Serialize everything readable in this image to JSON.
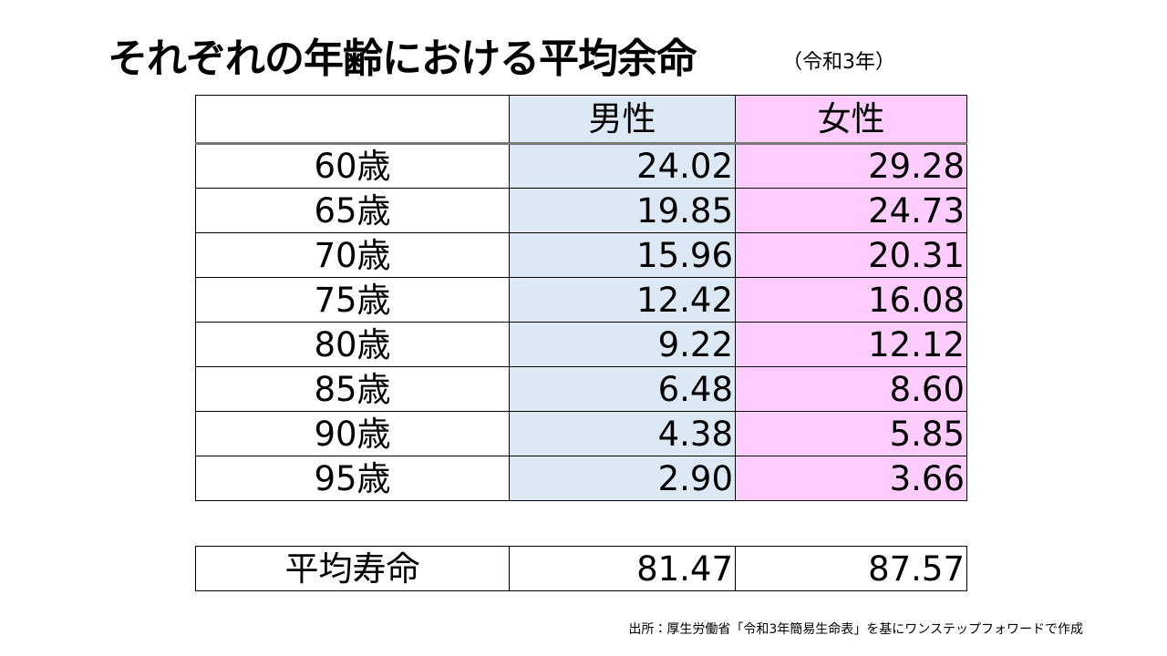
{
  "header": {
    "title": "それぞれの年齢における平均余命",
    "subtitle": "（令和3年）"
  },
  "table": {
    "columns": [
      "男性",
      "女性"
    ],
    "rows": [
      [
        "60歳",
        "24.02",
        "29.28"
      ],
      [
        "65歳",
        "19.85",
        "24.73"
      ],
      [
        "70歳",
        "15.96",
        "20.31"
      ],
      [
        "75歳",
        "12.42",
        "16.08"
      ],
      [
        "80歳",
        "9.22",
        "12.12"
      ],
      [
        "85歳",
        "6.48",
        "8.60"
      ],
      [
        "90歳",
        "4.38",
        "5.85"
      ],
      [
        "95歳",
        "2.90",
        "3.66"
      ]
    ]
  },
  "summary": {
    "row": [
      "平均寿命",
      "81.47",
      "87.57"
    ]
  },
  "footer": {
    "source": "出所：厚生労働省「令和3年簡易生命表」を基にワンステップフォワードで作成"
  }
}
